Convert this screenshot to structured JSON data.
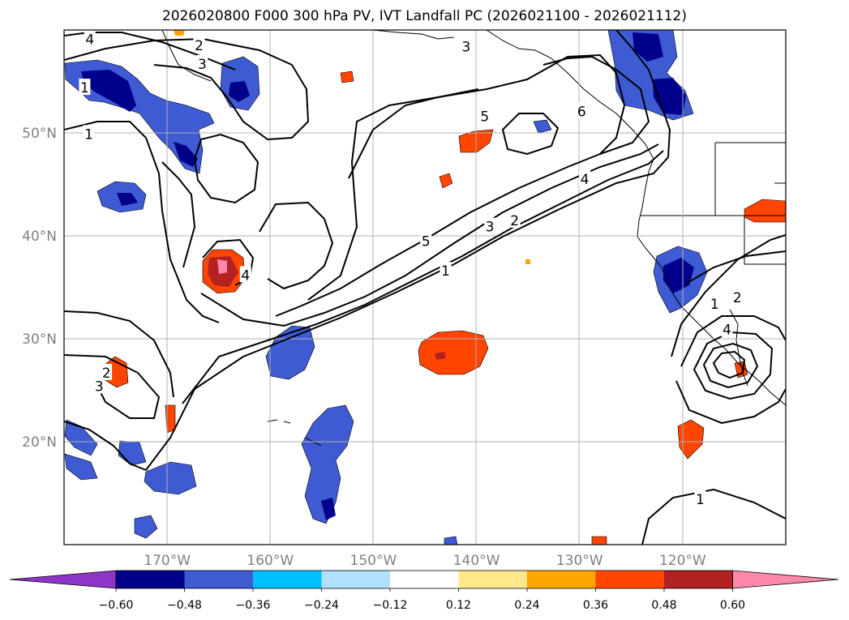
{
  "title": "2026020800 F000 300 hPa PV, IVT Landfall PC (2026021100 - 2026021112)",
  "map": {
    "lon_range": [
      -180,
      -110
    ],
    "lat_range": [
      10,
      60
    ],
    "gridlines": true,
    "lon_ticks": [
      {
        "lon": -170,
        "label": "170°W"
      },
      {
        "lon": -160,
        "label": "160°W"
      },
      {
        "lon": -150,
        "label": "150°W"
      },
      {
        "lon": -140,
        "label": "140°W"
      },
      {
        "lon": -130,
        "label": "130°W"
      },
      {
        "lon": -120,
        "label": "120°W"
      }
    ],
    "lat_ticks": [
      {
        "lat": 50,
        "label": "50°N"
      },
      {
        "lat": 40,
        "label": "40°N"
      },
      {
        "lat": 30,
        "label": "30°N"
      },
      {
        "lat": 20,
        "label": "20°N"
      }
    ],
    "contour_labels": [
      {
        "text": "4",
        "lon": -177.5,
        "lat": 59.1
      },
      {
        "text": "2",
        "lon": -166.9,
        "lat": 58.5
      },
      {
        "text": "3",
        "lon": -166.6,
        "lat": 56.7
      },
      {
        "text": "1",
        "lon": -178.0,
        "lat": 54.4
      },
      {
        "text": "1",
        "lon": -177.6,
        "lat": 49.9
      },
      {
        "text": "3",
        "lon": -141.0,
        "lat": 58.4
      },
      {
        "text": "5",
        "lon": -139.2,
        "lat": 51.6
      },
      {
        "text": "6",
        "lon": -129.8,
        "lat": 52.1
      },
      {
        "text": "4",
        "lon": -129.5,
        "lat": 45.5
      },
      {
        "text": "2",
        "lon": -136.3,
        "lat": 41.5
      },
      {
        "text": "3",
        "lon": -138.7,
        "lat": 40.9
      },
      {
        "text": "5",
        "lon": -144.9,
        "lat": 39.5
      },
      {
        "text": "1",
        "lon": -143.0,
        "lat": 36.6
      },
      {
        "text": "4",
        "lon": -162.4,
        "lat": 36.2
      },
      {
        "text": "2",
        "lon": -175.9,
        "lat": 26.7
      },
      {
        "text": "3",
        "lon": -176.6,
        "lat": 25.4
      },
      {
        "text": "2",
        "lon": -114.7,
        "lat": 34.0
      },
      {
        "text": "1",
        "lon": -116.9,
        "lat": 33.4
      },
      {
        "text": "4",
        "lon": -115.7,
        "lat": 30.9
      },
      {
        "text": "1",
        "lon": -118.3,
        "lat": 14.4
      }
    ],
    "shading_colors": {
      "lt_-0.60": "#8e35c9",
      "-0.60_-0.48": "#00008b",
      "-0.48_-0.36": "#3e5bd3",
      "-0.36_-0.24": "#00bfff",
      "-0.24_-0.12": "#b0e0ff",
      "-0.12_0.12": "#ffffff",
      "0.12_0.24": "#ffe88a",
      "0.24_0.36": "#ffa500",
      "0.36_0.48": "#ff4500",
      "0.48_0.60": "#b22222",
      "gt_0.60": "#ff88aa"
    }
  },
  "colorbar": {
    "ticks": [
      "−0.60",
      "−0.48",
      "−0.36",
      "−0.24",
      "−0.12",
      "0.12",
      "0.24",
      "0.36",
      "0.48",
      "0.60"
    ],
    "colors": [
      "#8e35c9",
      "#00008b",
      "#3e5bd3",
      "#00bfff",
      "#b0e0ff",
      "#ffffff",
      "#ffe88a",
      "#ffa500",
      "#ff4500",
      "#b22222",
      "#ff88aa"
    ]
  }
}
